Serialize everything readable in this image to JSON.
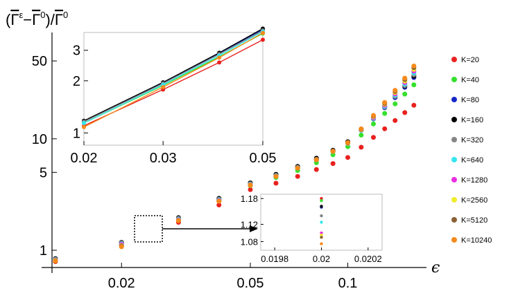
{
  "chart_data": {
    "type": "scatter",
    "title": "",
    "ylabel_parts": {
      "open": "(",
      "gamma": "Γ",
      "eps": "ε",
      "minus": "−",
      "zero": "0",
      "slash": "/",
      "close": ")"
    },
    "xlabel": "ϵ",
    "xscale": "log",
    "yscale": "log",
    "xlim": [
      0.0122,
      0.175
    ],
    "ylim": [
      0.7,
      90
    ],
    "x_ticks": [
      {
        "value": 0.02,
        "label": "0.02"
      },
      {
        "value": 0.05,
        "label": "0.05"
      },
      {
        "value": 0.1,
        "label": "0.1"
      }
    ],
    "y_ticks": [
      {
        "value": 1,
        "label": "1"
      },
      {
        "value": 5,
        "label": "5"
      },
      {
        "value": 10,
        "label": "10"
      },
      {
        "value": 50,
        "label": "50"
      }
    ],
    "x": [
      0.0125,
      0.02,
      0.03,
      0.04,
      0.05,
      0.06,
      0.07,
      0.08,
      0.09,
      0.1,
      0.11,
      0.12,
      0.13,
      0.14,
      0.15,
      0.16
    ],
    "series": [
      {
        "name": "K=20",
        "color": "#e8211f",
        "values": [
          0.79,
          1.1,
          1.78,
          2.55,
          3.5,
          4.0,
          4.6,
          5.3,
          6.0,
          6.8,
          8.4,
          10.3,
          12.3,
          14.6,
          17.2,
          20.0
        ]
      },
      {
        "name": "K=40",
        "color": "#35e02d",
        "values": [
          0.82,
          1.14,
          1.88,
          2.78,
          3.8,
          4.5,
          5.2,
          6.1,
          7.2,
          8.5,
          10.8,
          13.6,
          16.9,
          20.6,
          25.2,
          30.5
        ]
      },
      {
        "name": "K=80",
        "color": "#1428c8",
        "values": [
          0.84,
          1.17,
          1.95,
          2.9,
          4.0,
          4.75,
          5.6,
          6.6,
          7.8,
          9.3,
          12.0,
          15.1,
          19.0,
          23.4,
          29.0,
          35.5
        ]
      },
      {
        "name": "K=160",
        "color": "#000000",
        "values": [
          0.84,
          1.175,
          1.96,
          2.92,
          4.02,
          4.8,
          5.65,
          6.7,
          7.9,
          9.4,
          12.2,
          15.4,
          19.5,
          24.0,
          29.7,
          36.5
        ]
      },
      {
        "name": "K=320",
        "color": "#858585",
        "values": [
          0.83,
          1.16,
          1.93,
          2.87,
          3.95,
          4.7,
          5.55,
          6.55,
          7.75,
          9.2,
          11.9,
          15.2,
          19.3,
          24.0,
          30.0,
          37.5
        ]
      },
      {
        "name": "K=640",
        "color": "#36e5ee",
        "values": [
          0.82,
          1.14,
          1.9,
          2.83,
          3.9,
          4.65,
          5.5,
          6.5,
          7.7,
          9.1,
          11.9,
          15.3,
          19.6,
          24.6,
          31.0,
          39.0
        ]
      },
      {
        "name": "K=1280",
        "color": "#e72ee0",
        "values": [
          0.815,
          1.125,
          1.88,
          2.8,
          3.87,
          4.62,
          5.48,
          6.48,
          7.7,
          9.1,
          12.0,
          15.5,
          20.0,
          25.3,
          32.0,
          40.5
        ]
      },
      {
        "name": "K=2560",
        "color": "#f0ec2b",
        "values": [
          0.81,
          1.1,
          1.86,
          2.77,
          3.85,
          4.6,
          5.46,
          6.47,
          7.7,
          9.15,
          12.1,
          15.8,
          20.5,
          26.0,
          33.0,
          42.0
        ]
      },
      {
        "name": "K=5120",
        "color": "#8a6035",
        "values": [
          0.805,
          1.09,
          1.85,
          2.76,
          3.84,
          4.6,
          5.46,
          6.48,
          7.72,
          9.2,
          12.2,
          16.0,
          20.8,
          26.6,
          34.0,
          43.5
        ]
      },
      {
        "name": "K=10240",
        "color": "#f58a1c",
        "values": [
          0.8,
          1.075,
          1.84,
          2.75,
          3.83,
          4.6,
          5.47,
          6.5,
          7.75,
          9.25,
          12.3,
          16.2,
          21.2,
          27.2,
          35.0,
          45.0
        ]
      }
    ],
    "inset_top": {
      "type": "line",
      "xscale": "log",
      "yscale": "log",
      "xlim": [
        0.02,
        0.05
      ],
      "ylim": [
        0.85,
        3.8
      ],
      "x_ticks": [
        {
          "value": 0.02,
          "label": "0.02"
        },
        {
          "value": 0.03,
          "label": "0.03"
        },
        {
          "value": 0.05,
          "label": "0.05"
        }
      ],
      "y_ticks": [
        {
          "value": 1,
          "label": "1"
        },
        {
          "value": 2,
          "label": "2"
        },
        {
          "value": 3,
          "label": "3"
        }
      ],
      "x": [
        0.02,
        0.03,
        0.04,
        0.05
      ],
      "series_names": [
        "K=20",
        "K=40",
        "K=80",
        "K=160",
        "K=320",
        "K=640",
        "K=10240"
      ],
      "values": [
        [
          1.1,
          1.78,
          2.55,
          3.45
        ],
        [
          1.14,
          1.88,
          2.75,
          3.75
        ],
        [
          1.17,
          1.95,
          2.88,
          3.95
        ],
        [
          1.175,
          1.96,
          2.9,
          4.0
        ],
        [
          1.16,
          1.93,
          2.85,
          3.9
        ],
        [
          1.14,
          1.9,
          2.8,
          3.85
        ],
        [
          1.08,
          1.84,
          2.72,
          3.78
        ]
      ]
    },
    "inset_zoom": {
      "type": "scatter",
      "xlim": [
        0.01974,
        0.02026
      ],
      "ylim": [
        1.06,
        1.19
      ],
      "x_ticks": [
        {
          "value": 0.0198,
          "label": "0.0198"
        },
        {
          "value": 0.02,
          "label": "0.02"
        },
        {
          "value": 0.0202,
          "label": "0.0202"
        }
      ],
      "y_ticks": [
        {
          "value": 1.08,
          "label": "1.08"
        },
        {
          "value": 1.12,
          "label": "1.12"
        },
        {
          "value": 1.18,
          "label": "1.18"
        }
      ],
      "x": 0.02,
      "values": [
        1.18,
        1.175,
        1.16,
        1.162,
        1.14,
        1.125,
        1.1,
        1.095,
        1.09,
        1.075
      ]
    }
  }
}
